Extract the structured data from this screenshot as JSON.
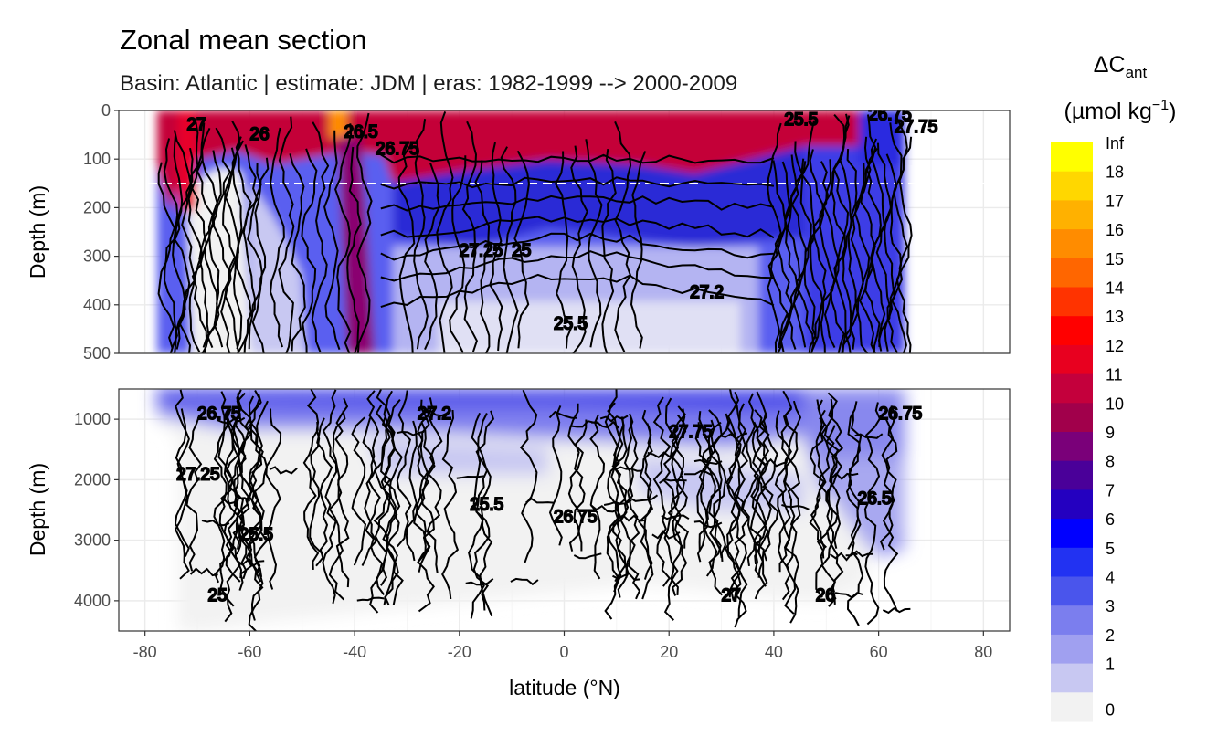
{
  "chart_data": {
    "type": "contour",
    "title": "Zonal mean section",
    "subtitle": "Basin: Atlantic | estimate: JDM  | eras: 1982-1999 --> 2000-2009",
    "xlabel": "latitude (°N)",
    "ylabel": "Depth (m)",
    "xlim": [
      -85,
      85
    ],
    "x_ticks": [
      "-80",
      "-60",
      "-40",
      "-20",
      "0",
      "20",
      "40",
      "60",
      "80"
    ],
    "x_tick_values": [
      -80,
      -60,
      -40,
      -20,
      0,
      20,
      40,
      60,
      80
    ],
    "data_extent_lat": [
      -78,
      65
    ],
    "panels": [
      {
        "name": "upper",
        "ylim": [
          0,
          500
        ],
        "y_ticks": [
          "0",
          "100",
          "200",
          "300",
          "400",
          "500"
        ],
        "y_tick_values": [
          0,
          100,
          200,
          300,
          400,
          500
        ],
        "reference_line_depth": 150
      },
      {
        "name": "lower",
        "ylim": [
          500,
          4500
        ],
        "y_ticks": [
          "1000",
          "2000",
          "3000",
          "4000"
        ],
        "y_tick_values": [
          1000,
          2000,
          3000,
          4000
        ]
      }
    ],
    "legend": {
      "title_line1": "ΔC",
      "title_sub": "ant",
      "title_line2_pre": "(µmol kg",
      "title_line2_sup": "−1",
      "title_line2_post": ")",
      "breaks": [
        "Inf",
        "18",
        "17",
        "16",
        "15",
        "14",
        "13",
        "12",
        "11",
        "10",
        "9",
        "8",
        "7",
        "6",
        "5",
        "4",
        "3",
        "2",
        "1",
        "0"
      ],
      "colors": [
        "#ffff00",
        "#ffd700",
        "#ffb100",
        "#ff8c00",
        "#ff6600",
        "#ff3300",
        "#ff0000",
        "#e8001f",
        "#c4003c",
        "#a1004b",
        "#7a0079",
        "#4a0099",
        "#2400c0",
        "#0000ff",
        "#2232f2",
        "#4a55ec",
        "#7b7eee",
        "#a0a0f0",
        "#c8c8f2",
        "#f2f2f2"
      ]
    },
    "contour_labels_shown": [
      "27",
      "26",
      "26.5",
      "26.75",
      "27.25",
      "25.5",
      "25",
      "27.2",
      "25.5",
      "26.75",
      "27.75"
    ],
    "upper_panel_fill": [
      {
        "lat_range": [
          -78,
          -73
        ],
        "depth_range": [
          0,
          500
        ],
        "level": "0-3"
      },
      {
        "lat_range": [
          -73,
          -62
        ],
        "depth_range": [
          50,
          500
        ],
        "level": "0-1"
      },
      {
        "lat_range": [
          -62,
          -30
        ],
        "depth_range": [
          0,
          120
        ],
        "level": "10-12"
      },
      {
        "lat_range": [
          -45,
          -40
        ],
        "depth_range": [
          0,
          500
        ],
        "level": "9-11"
      },
      {
        "lat_range": [
          -30,
          35
        ],
        "depth_range": [
          0,
          60
        ],
        "level": "11-12"
      },
      {
        "lat_range": [
          -30,
          35
        ],
        "depth_range": [
          60,
          240
        ],
        "level": "5-8"
      },
      {
        "lat_range": [
          -30,
          35
        ],
        "depth_range": [
          240,
          450
        ],
        "level": "2-4"
      },
      {
        "lat_range": [
          35,
          65
        ],
        "depth_range": [
          0,
          500
        ],
        "level": "3-8"
      }
    ]
  }
}
